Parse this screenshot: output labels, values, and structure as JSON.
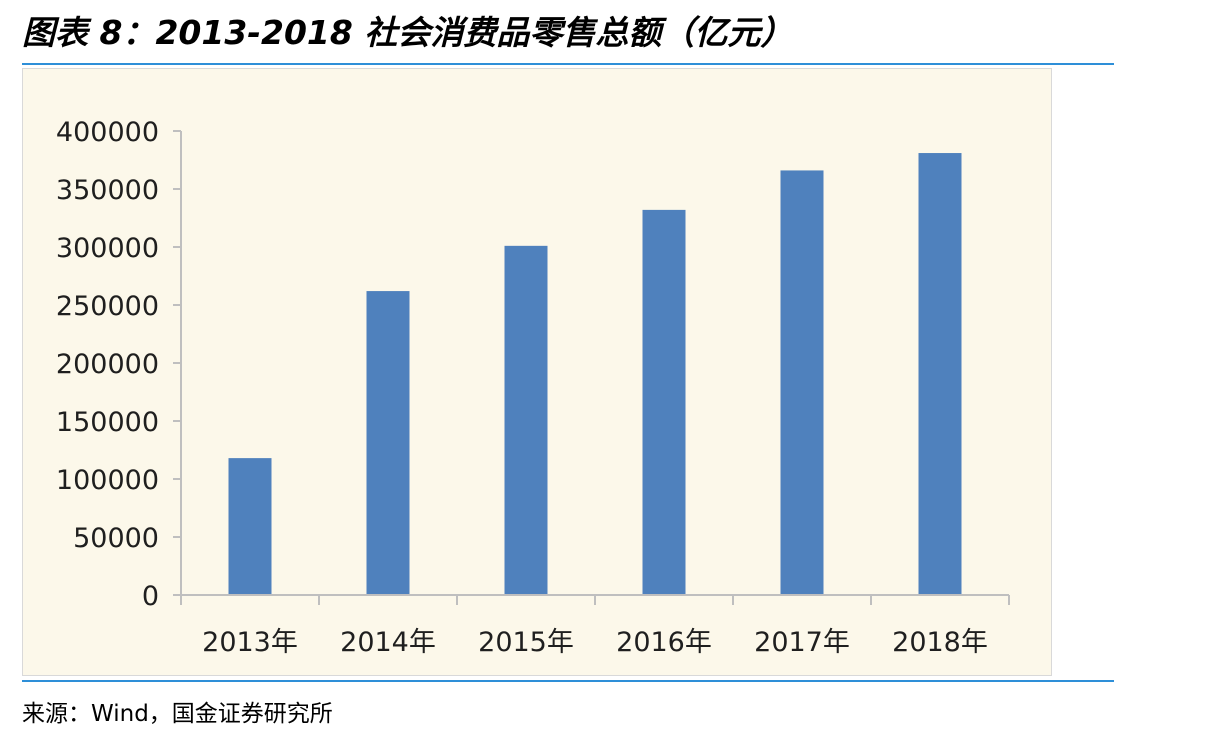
{
  "title": "图表 8：2013-2018 社会消费品零售总额（亿元）",
  "source": "来源：Wind，国金证券研究所",
  "colors": {
    "rule": "#2e8fd8",
    "plot_background": "#fcf8ea",
    "bar": "#4f81bd",
    "axis": "#bfbfbf"
  },
  "chart_data": {
    "type": "bar",
    "categories": [
      "2013年",
      "2014年",
      "2015年",
      "2016年",
      "2017年",
      "2018年"
    ],
    "values": [
      118000,
      262000,
      301000,
      332000,
      366000,
      381000
    ],
    "yticks": [
      0,
      50000,
      100000,
      150000,
      200000,
      250000,
      300000,
      350000,
      400000
    ],
    "ylim": [
      0,
      400000
    ],
    "grid": false,
    "legend": "none",
    "title": "",
    "xlabel": "",
    "ylabel": ""
  }
}
